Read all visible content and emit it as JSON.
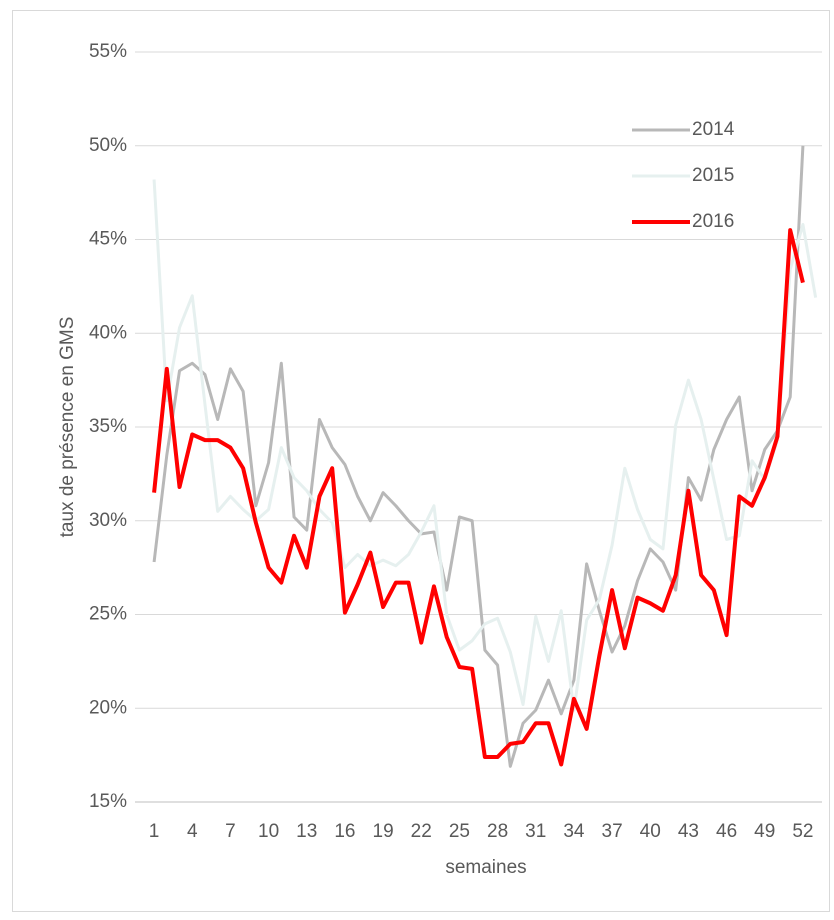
{
  "chart_data": {
    "type": "line",
    "x_label": "semaines",
    "y_label": "taux de présence en GMS",
    "x": [
      1,
      2,
      3,
      4,
      5,
      6,
      7,
      8,
      9,
      10,
      11,
      12,
      13,
      14,
      15,
      16,
      17,
      18,
      19,
      20,
      21,
      22,
      23,
      24,
      25,
      26,
      27,
      28,
      29,
      30,
      31,
      32,
      33,
      34,
      35,
      36,
      37,
      38,
      39,
      40,
      41,
      42,
      43,
      44,
      45,
      46,
      47,
      48,
      49,
      50,
      51,
      52,
      53
    ],
    "xlim": [
      -0.5,
      53.5
    ],
    "xticks": [
      1,
      4,
      7,
      10,
      13,
      16,
      19,
      22,
      25,
      28,
      31,
      34,
      37,
      40,
      43,
      46,
      49,
      52
    ],
    "ylim": [
      15,
      55
    ],
    "yticks": [
      {
        "value": 15,
        "label": "15%"
      },
      {
        "value": 20,
        "label": "20%"
      },
      {
        "value": 25,
        "label": "25%"
      },
      {
        "value": 30,
        "label": "30%"
      },
      {
        "value": 35,
        "label": "35%"
      },
      {
        "value": 40,
        "label": "40%"
      },
      {
        "value": 45,
        "label": "45%"
      },
      {
        "value": 50,
        "label": "50%"
      },
      {
        "value": 55,
        "label": "55%"
      }
    ],
    "grid": true,
    "legend": "upper right",
    "series": [
      {
        "name": "2014",
        "color": "#b8b8b8",
        "values": [
          27.8,
          33.5,
          38.0,
          38.4,
          37.8,
          35.4,
          38.1,
          36.9,
          30.8,
          33.1,
          38.4,
          30.2,
          29.5,
          35.4,
          33.9,
          33.0,
          31.3,
          30.0,
          31.5,
          30.8,
          30.0,
          29.3,
          29.4,
          26.3,
          30.2,
          30.0,
          23.1,
          22.3,
          16.9,
          19.2,
          19.9,
          21.5,
          19.7,
          21.5,
          27.7,
          25.2,
          23.0,
          24.4,
          26.8,
          28.5,
          27.8,
          26.3,
          32.3,
          31.1,
          33.8,
          35.4,
          36.6,
          31.6,
          33.8,
          34.8,
          36.6,
          50.0,
          null
        ]
      },
      {
        "name": "2015",
        "color": "#e6f0ef",
        "values": [
          48.2,
          36.4,
          40.3,
          42.0,
          36.2,
          30.5,
          31.3,
          30.6,
          30.0,
          30.6,
          33.9,
          32.3,
          31.6,
          30.6,
          29.9,
          27.5,
          28.2,
          27.6,
          27.9,
          27.6,
          28.2,
          29.4,
          30.8,
          25.0,
          23.1,
          23.6,
          24.5,
          24.8,
          23.0,
          20.2,
          24.9,
          22.5,
          25.2,
          19.9,
          24.7,
          25.8,
          28.7,
          32.8,
          30.6,
          29.0,
          28.5,
          35.1,
          37.5,
          35.4,
          32.2,
          29.0,
          29.2,
          33.2,
          32.2,
          34.3,
          43.4,
          45.8,
          41.9
        ]
      },
      {
        "name": "2016",
        "color": "#ff0000",
        "values": [
          31.5,
          38.1,
          31.8,
          34.6,
          34.3,
          34.3,
          33.9,
          32.8,
          29.9,
          27.5,
          26.7,
          29.2,
          27.5,
          31.3,
          32.8,
          25.1,
          26.6,
          28.3,
          25.4,
          26.7,
          26.7,
          23.5,
          26.5,
          23.8,
          22.2,
          22.1,
          17.4,
          17.4,
          18.1,
          18.2,
          19.2,
          19.2,
          17.0,
          20.5,
          18.9,
          22.8,
          26.3,
          23.2,
          25.9,
          25.6,
          25.2,
          27.1,
          31.6,
          27.1,
          26.3,
          23.9,
          31.3,
          30.8,
          32.3,
          34.5,
          45.5,
          42.7,
          null
        ]
      }
    ]
  }
}
